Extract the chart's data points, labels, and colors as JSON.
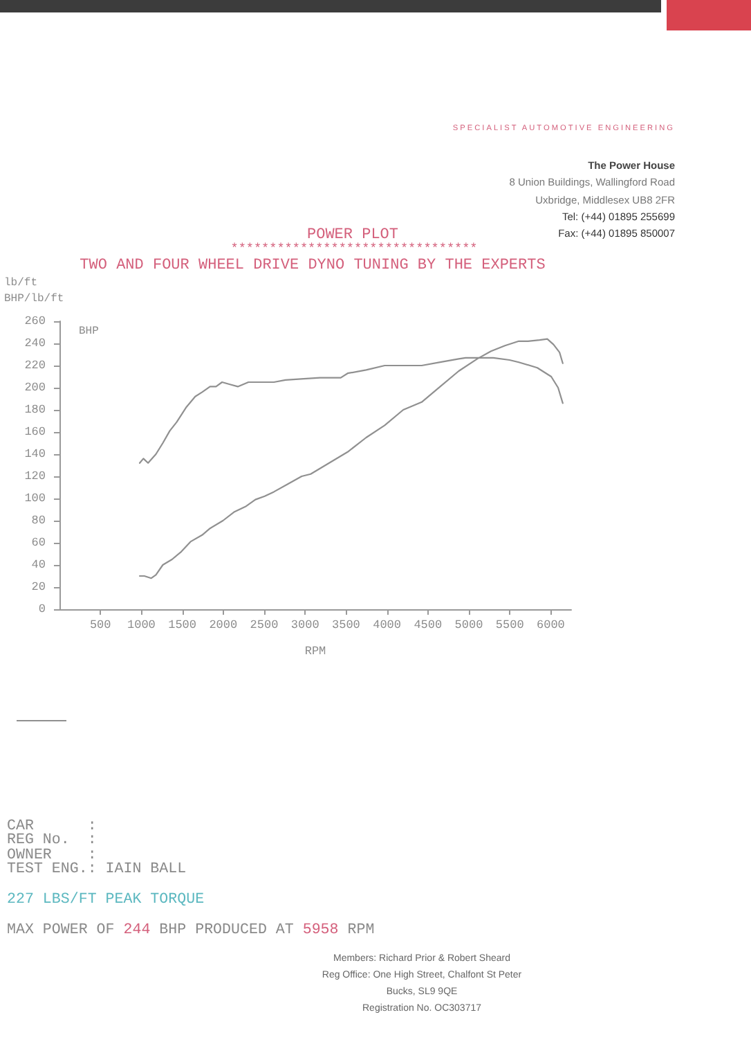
{
  "chart_data": {
    "type": "line",
    "title": "POWER PLOT",
    "subtitle": "TWO AND FOUR WHEEL DRIVE DYNO TUNING BY THE EXPERTS",
    "xlabel": "RPM",
    "ylabel": "BHP/lb/ft",
    "annotations": [
      "********************************",
      "BHP",
      "lb/ft",
      "SPECIALIST AUTOMOTIVE ENGINEERING",
      "The Power House",
      "8 Union Buildings, Wallingford Road",
      "Uxbridge, Middlesex UB8 2FR",
      "Tel: (+44) 01895 255699",
      "Fax: (+44) 01895 850007",
      "CAR      :",
      "REG No.  :",
      "OWNER    :",
      "TEST ENG.: IAIN BALL",
      "227 LBS/FT PEAK TORQUE",
      "MAX POWER OF 244 BHP PRODUCED AT 5958 RPM",
      "Members: Richard Prior & Robert Sheard",
      "Reg Office: One High Street, Chalfont St Peter",
      "Bucks, SL9 9QE",
      "Registration No. OC303717"
    ],
    "xlim": [
      0,
      6250
    ],
    "xticks": [
      500,
      1000,
      1500,
      2000,
      2500,
      3000,
      3500,
      4000,
      4500,
      5000,
      5500,
      6000
    ],
    "ylim": [
      0,
      260
    ],
    "yticks": [
      0,
      20,
      40,
      60,
      80,
      100,
      120,
      140,
      160,
      180,
      200,
      220,
      240,
      260
    ],
    "marker": "none",
    "line_style": "solid",
    "series": [
      {
        "color": "#909090",
        "x": [
          980,
          1025,
          1082,
          1178,
          1262,
          1347,
          1432,
          1545,
          1658,
          1743,
          1839,
          1912,
          1986,
          2082,
          2178,
          2308,
          2477,
          2619,
          2760,
          2983,
          3181,
          3435,
          3520,
          3746,
          3972,
          4198,
          4424,
          4650,
          4876,
          4960,
          5102,
          5299,
          5497,
          5610,
          5836,
          6006,
          6090,
          6147
        ],
        "values": [
          132,
          136,
          132,
          140,
          150,
          161,
          169,
          182,
          192,
          196,
          201,
          201,
          205,
          203,
          201,
          205,
          205,
          205,
          207,
          208,
          209,
          209,
          213,
          216,
          220,
          220,
          220,
          223,
          226,
          227,
          227,
          227,
          225,
          223,
          218,
          210,
          200,
          186
        ]
      },
      {
        "color": "#909090",
        "x": [
          980,
          1037,
          1121,
          1178,
          1262,
          1375,
          1488,
          1601,
          1743,
          1839,
          1997,
          2138,
          2280,
          2393,
          2506,
          2619,
          2788,
          2958,
          3068,
          3294,
          3520,
          3746,
          3972,
          4198,
          4424,
          4650,
          4876,
          5102,
          5271,
          5441,
          5610,
          5723,
          5864,
          5958,
          6034,
          6107,
          6147
        ],
        "values": [
          30,
          30,
          28,
          31,
          40,
          45,
          52,
          61,
          67,
          73,
          80,
          88,
          93,
          99,
          102,
          106,
          113,
          120,
          122,
          132,
          142,
          155,
          166,
          180,
          187,
          201,
          215,
          226,
          233,
          238,
          242,
          242,
          243,
          244,
          239,
          232,
          222
        ]
      }
    ]
  }
}
